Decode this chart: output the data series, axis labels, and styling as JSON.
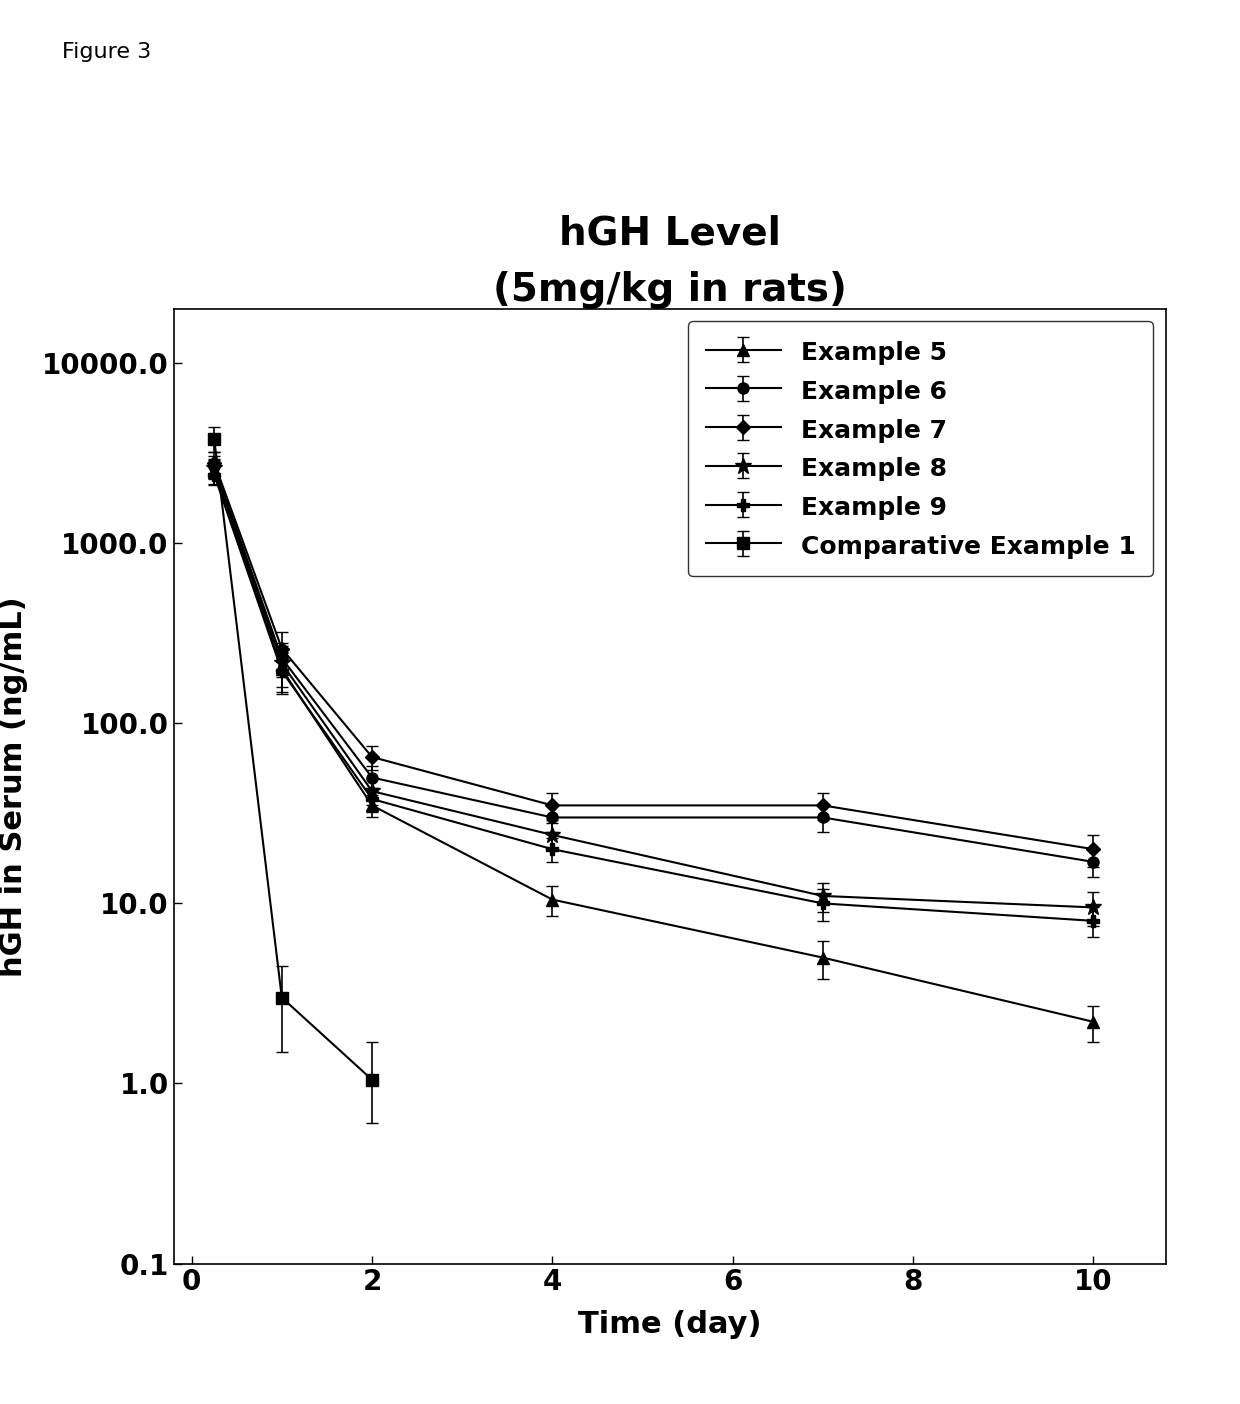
{
  "title_line1": "hGH Level",
  "title_line2": "(5mg/kg in rats)",
  "xlabel": "Time (day)",
  "ylabel": "hGH in Serum (ng/mL)",
  "figure_label": "Figure 3",
  "xlim": [
    -0.2,
    10.8
  ],
  "ylim_log": [
    0.1,
    20000
  ],
  "xticks": [
    0,
    2,
    4,
    6,
    8,
    10
  ],
  "ytick_vals": [
    0.1,
    1.0,
    10.0,
    100.0,
    1000.0,
    10000.0
  ],
  "ytick_labels": [
    "0.1",
    "1.0",
    "10.0",
    "100.0",
    "1000.0",
    "10000.0"
  ],
  "series": [
    {
      "label": "Example 5",
      "marker": "^",
      "markersize": 8,
      "x": [
        0.25,
        1,
        2,
        4,
        7,
        10
      ],
      "y": [
        2500,
        200,
        35,
        10.5,
        5.0,
        2.2
      ],
      "yerr_lo": [
        400,
        50,
        5,
        2,
        1.2,
        0.5
      ],
      "yerr_hi": [
        400,
        50,
        5,
        2,
        1.2,
        0.5
      ]
    },
    {
      "label": "Example 6",
      "marker": "o",
      "markersize": 8,
      "x": [
        0.25,
        1,
        2,
        4,
        7,
        10
      ],
      "y": [
        2700,
        230,
        50,
        30,
        30,
        17
      ],
      "yerr_lo": [
        350,
        50,
        8,
        5,
        5,
        3
      ],
      "yerr_hi": [
        350,
        50,
        8,
        5,
        5,
        3
      ]
    },
    {
      "label": "Example 7",
      "marker": "D",
      "markersize": 7,
      "x": [
        0.25,
        1,
        2,
        4,
        7,
        10
      ],
      "y": [
        2800,
        260,
        65,
        35,
        35,
        20
      ],
      "yerr_lo": [
        400,
        60,
        10,
        6,
        6,
        4
      ],
      "yerr_hi": [
        400,
        60,
        10,
        6,
        6,
        4
      ]
    },
    {
      "label": "Example 8",
      "marker": "*",
      "markersize": 12,
      "x": [
        0.25,
        1,
        2,
        4,
        7,
        10
      ],
      "y": [
        2600,
        215,
        42,
        24,
        11,
        9.5
      ],
      "yerr_lo": [
        320,
        55,
        7,
        4,
        2,
        2
      ],
      "yerr_hi": [
        320,
        55,
        7,
        4,
        2,
        2
      ]
    },
    {
      "label": "Example 9",
      "marker": "P",
      "markersize": 8,
      "x": [
        0.25,
        1,
        2,
        4,
        7,
        10
      ],
      "y": [
        2400,
        195,
        38,
        20,
        10,
        8
      ],
      "yerr_lo": [
        280,
        50,
        6,
        3,
        2,
        1.5
      ],
      "yerr_hi": [
        280,
        50,
        6,
        3,
        2,
        1.5
      ]
    },
    {
      "label": "Comparative Example 1",
      "marker": "s",
      "markersize": 8,
      "x": [
        0.25,
        1,
        2
      ],
      "y": [
        3800,
        3.0,
        1.05
      ],
      "yerr_lo": [
        600,
        1.5,
        0.45
      ],
      "yerr_hi": [
        600,
        1.5,
        0.65
      ]
    }
  ]
}
